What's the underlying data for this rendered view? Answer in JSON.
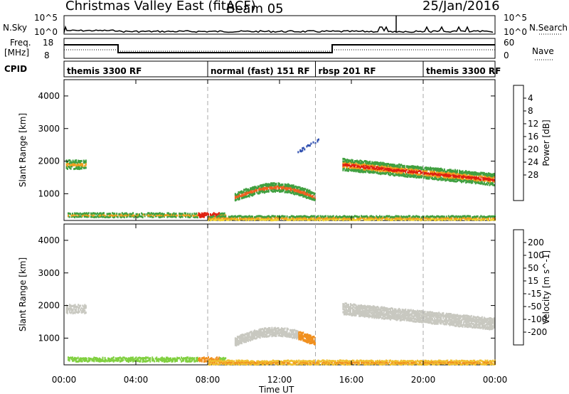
{
  "title": "Christmas Valley East (fitACF)",
  "beam": "Beam 05",
  "date": "25/Jan/2016",
  "top_panels": {
    "nsky_label": "N.Sky",
    "nsky_ticks": [
      "10^5",
      "10^0"
    ],
    "nsearch_label": "N.Search",
    "nsearch_ticks": [
      "10^5",
      "10^0"
    ],
    "freq_label": "Freq.",
    "freq_unit": "[MHz]",
    "freq_ticks": [
      "18",
      "8"
    ],
    "nave_label": "Nave",
    "nave_ticks": [
      "60",
      "0"
    ],
    "cpid_label": "CPID",
    "cpid_segments": [
      {
        "label": "themis 3300 RF",
        "start_h": 0,
        "end_h": 8
      },
      {
        "label": "normal (fast) 151 RF",
        "start_h": 8,
        "end_h": 14
      },
      {
        "label": "rbsp 201 RF",
        "start_h": 14,
        "end_h": 20
      },
      {
        "label": "themis 3300 RF",
        "start_h": 20,
        "end_h": 24
      }
    ]
  },
  "chart_data": [
    {
      "type": "heatmap",
      "name": "power",
      "ylabel": "Slant Range [km]",
      "yticks": [
        1000,
        2000,
        3000,
        4000
      ],
      "ylim": [
        180,
        4500
      ],
      "xlim": [
        0,
        24
      ],
      "colorbar": {
        "label": "Power [dB]",
        "ticks": [
          "4",
          "8",
          "12",
          "16",
          "20",
          "24",
          "28"
        ],
        "range": [
          0,
          32
        ],
        "colors": [
          "#1020e0",
          "#3050b0",
          "#307060",
          "#40a040",
          "#a0d040",
          "#f0d030",
          "#f0a020",
          "#f06020",
          "#e02010"
        ]
      }
    },
    {
      "type": "heatmap",
      "name": "velocity",
      "ylabel": "Slant Range [km]",
      "yticks": [
        1000,
        2000,
        3000,
        4000
      ],
      "ylim": [
        180,
        4500
      ],
      "xlim": [
        0,
        24
      ],
      "xticks": [
        "00:00",
        "04:00",
        "08:00",
        "12:00",
        "16:00",
        "20:00",
        "00:00"
      ],
      "xlabel": "Time UT",
      "colorbar": {
        "label": "Velocity [m s^-1]",
        "ticks": [
          "200",
          "100",
          "50",
          "15",
          "-15",
          "-50",
          "-100",
          "-200"
        ],
        "colors": [
          "#1030c0",
          "#3070a0",
          "#40a060",
          "#80d040",
          "#c8c8c0",
          "#f0c030",
          "#f09020",
          "#f06020",
          "#e02010"
        ]
      }
    }
  ]
}
